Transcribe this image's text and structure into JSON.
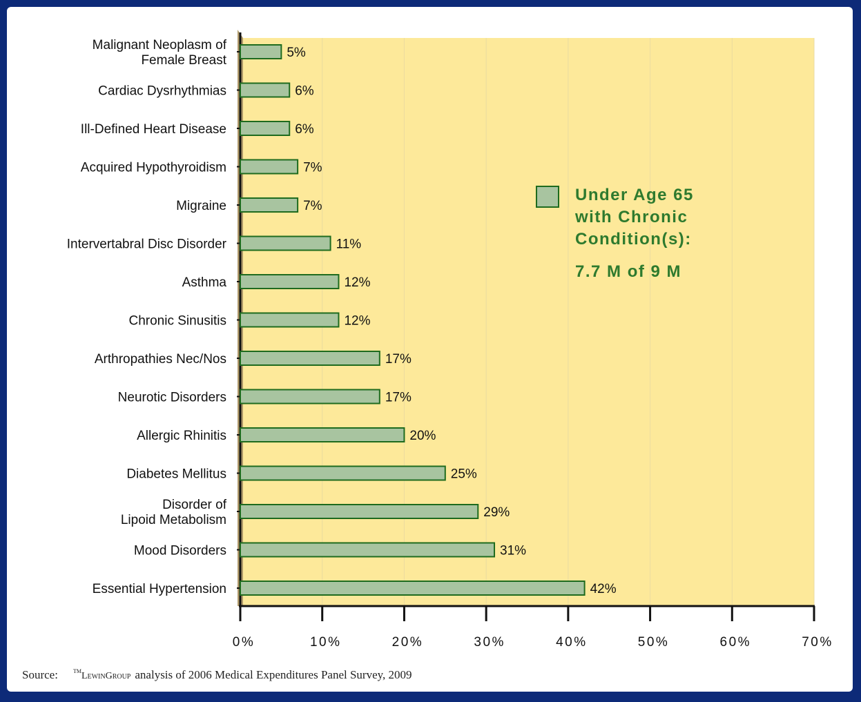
{
  "chart_data": {
    "type": "bar",
    "orientation": "horizontal",
    "categories": [
      [
        "Malignant Neoplasm of",
        "Female Breast"
      ],
      [
        "Cardiac Dysrhythmias"
      ],
      [
        "Ill-Defined Heart Disease"
      ],
      [
        "Acquired Hypothyroidism"
      ],
      [
        "Migraine"
      ],
      [
        "Intervertabral Disc Disorder"
      ],
      [
        "Asthma"
      ],
      [
        "Chronic Sinusitis"
      ],
      [
        "Arthropathies Nec/Nos"
      ],
      [
        "Neurotic Disorders"
      ],
      [
        "Allergic Rhinitis"
      ],
      [
        "Diabetes Mellitus"
      ],
      [
        "Disorder of",
        "Lipoid Metabolism"
      ],
      [
        "Mood Disorders"
      ],
      [
        "Essential Hypertension"
      ]
    ],
    "values": [
      5,
      6,
      6,
      7,
      7,
      11,
      12,
      12,
      17,
      17,
      20,
      25,
      29,
      31,
      42
    ],
    "value_labels": [
      "5%",
      "6%",
      "6%",
      "7%",
      "7%",
      "11%",
      "12%",
      "12%",
      "17%",
      "17%",
      "20%",
      "25%",
      "29%",
      "31%",
      "42%"
    ],
    "xlim": [
      0,
      70
    ],
    "xticks": [
      0,
      10,
      20,
      30,
      40,
      50,
      60,
      70
    ],
    "xtick_labels": [
      "0%",
      "10%",
      "20%",
      "30%",
      "40%",
      "50%",
      "60%",
      "70%"
    ],
    "legend": {
      "placement": "right-middle",
      "lines": [
        "Under Age 65",
        "with Chronic",
        "Condition(s):"
      ],
      "note": "7.7 M of 9 M"
    },
    "grid": true,
    "colors": {
      "bar_fill": "#a8c4a0",
      "bar_stroke": "#1e6b1e",
      "plot_background": "#fde99a",
      "legend_text": "#2e7a2e",
      "frame": "#0d2a78"
    }
  },
  "source": {
    "label": "Source:",
    "brand_tm": "TM",
    "brand": "LewinGroup",
    "text": "analysis of 2006 Medical Expenditures Panel Survey, 2009"
  }
}
